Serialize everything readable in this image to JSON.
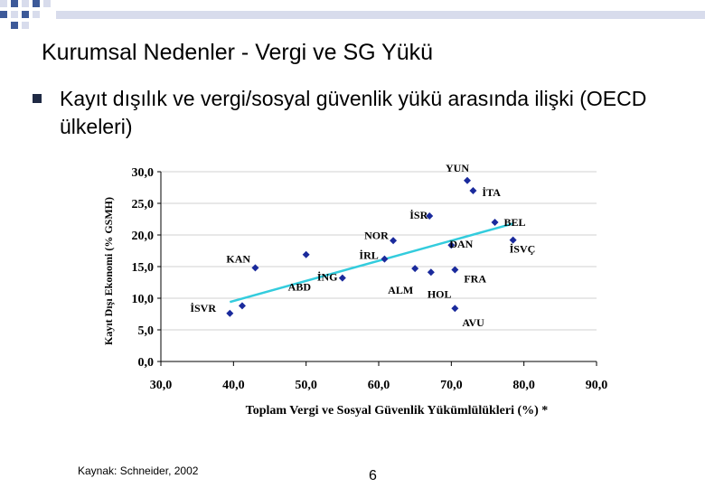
{
  "slide": {
    "title": "Kurumsal Nedenler - Vergi ve SG Yükü",
    "bullet": "Kayıt dışılık ve vergi/sosyal güvenlik yükü arasında ilişki (OECD ülkeleri)",
    "source": "Kaynak: Schneider, 2002",
    "page_number": "6"
  },
  "colors": {
    "points": "#1a2a9c",
    "trendline": "#33ccdd",
    "grid": "#d0d0d0",
    "deco_blue": "#3d5a99",
    "deco_light": "#d8dcec"
  },
  "chart_data": {
    "type": "scatter",
    "xlabel": "Toplam Vergi ve Sosyal Güvenlik Yükümlülükleri (%) *",
    "ylabel": "Kayıt Dışı Ekonomi (% GSMH)",
    "xlim": [
      30,
      90
    ],
    "ylim": [
      0,
      30
    ],
    "x_ticks": [
      "30,0",
      "40,0",
      "50,0",
      "60,0",
      "70,0",
      "80,0",
      "90,0"
    ],
    "y_ticks": [
      "0,0",
      "5,0",
      "10,0",
      "15,0",
      "20,0",
      "25,0",
      "30,0"
    ],
    "grid": "horizontal",
    "points": [
      {
        "label": "İSVR",
        "x": 39.5,
        "y": 7.6
      },
      {
        "label": "",
        "x": 41.2,
        "y": 8.8
      },
      {
        "label": "KAN",
        "x": 43.0,
        "y": 14.8
      },
      {
        "label": "ABD",
        "x": 50.0,
        "y": 16.9
      },
      {
        "label": "İNG",
        "x": 55.0,
        "y": 13.2
      },
      {
        "label": "İRL",
        "x": 60.8,
        "y": 16.2
      },
      {
        "label": "NOR",
        "x": 62.0,
        "y": 19.1
      },
      {
        "label": "ALM",
        "x": 65.0,
        "y": 14.7
      },
      {
        "label": "İSR",
        "x": 67.0,
        "y": 23.0
      },
      {
        "label": "HOL",
        "x": 67.2,
        "y": 14.1
      },
      {
        "label": "DAN",
        "x": 70.0,
        "y": 18.4
      },
      {
        "label": "FRA",
        "x": 70.5,
        "y": 14.5
      },
      {
        "label": "AVU",
        "x": 70.5,
        "y": 8.4
      },
      {
        "label": "YUN",
        "x": 72.2,
        "y": 28.6
      },
      {
        "label": "İTA",
        "x": 73.0,
        "y": 27.0
      },
      {
        "label": "BEL",
        "x": 76.0,
        "y": 22.0
      },
      {
        "label": "İSVÇ",
        "x": 78.5,
        "y": 19.2
      }
    ],
    "trendline": {
      "x": [
        39.5,
        78.5
      ],
      "y": [
        9.4,
        21.8
      ]
    }
  }
}
